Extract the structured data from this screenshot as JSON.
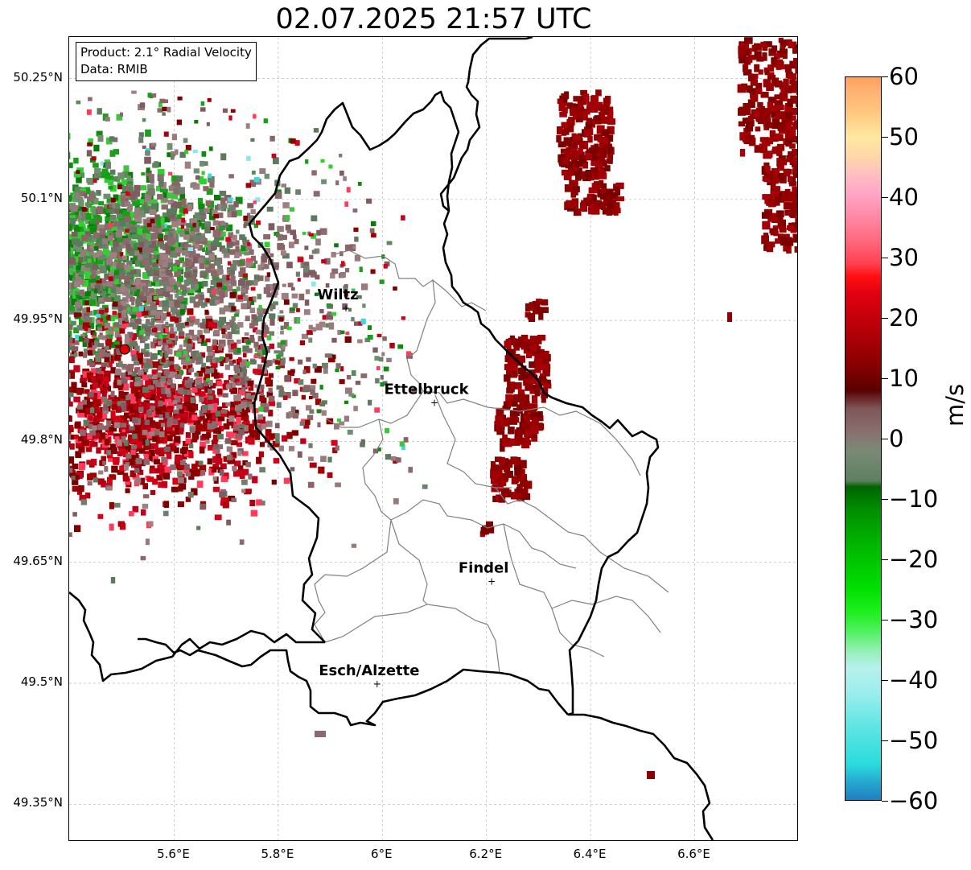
{
  "title": "02.07.2025 21:57 UTC",
  "info_box": {
    "product": "Product: 2.1° Radial Velocity",
    "data": "Data: RMIB"
  },
  "axes": {
    "lat_ticks": [
      "50.25°N",
      "50.1°N",
      "49.95°N",
      "49.8°N",
      "49.65°N",
      "49.5°N",
      "49.35°N"
    ],
    "lon_ticks": [
      "5.6°E",
      "5.8°E",
      "6°E",
      "6.2°E",
      "6.4°E",
      "6.6°E"
    ],
    "lat_values": [
      50.25,
      50.1,
      49.95,
      49.8,
      49.65,
      49.5,
      49.35
    ],
    "lon_values": [
      5.6,
      5.8,
      6.0,
      6.2,
      6.4,
      6.6
    ],
    "lon_range": [
      5.4,
      6.8
    ],
    "lat_range": [
      49.3,
      50.3
    ],
    "grid": true
  },
  "cities": [
    {
      "name": "Wiltz",
      "lon": 5.93,
      "lat": 49.966
    },
    {
      "name": "Ettelbruck",
      "lon": 6.1,
      "lat": 49.849
    },
    {
      "name": "Findel",
      "lon": 6.21,
      "lat": 49.627
    },
    {
      "name": "Esch/Alzette",
      "lon": 5.99,
      "lat": 49.5
    }
  ],
  "radar_site": {
    "lon": 5.505,
    "lat": 49.914
  },
  "colorbar": {
    "unit": "m/s",
    "range": [
      -60,
      60
    ],
    "ticks": [
      "60",
      "50",
      "40",
      "30",
      "20",
      "10",
      "0",
      "−10",
      "−20",
      "−30",
      "−40",
      "−50",
      "−60"
    ],
    "tick_values": [
      60,
      50,
      40,
      30,
      20,
      10,
      0,
      -10,
      -20,
      -30,
      -40,
      -50,
      -60
    ]
  },
  "colors": {
    "border": "#000000",
    "canton_border": "#808080",
    "radar_marker": "#e00000",
    "inbound_green": "#0a8a0a",
    "outbound_red": "#8b0000",
    "near_zero": "#8a7070"
  }
}
